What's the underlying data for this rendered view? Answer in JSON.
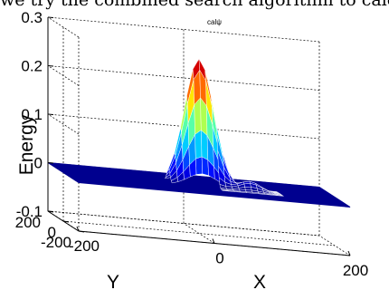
{
  "top_caption": "we try the combined search algorithm to calculate",
  "chart_data": {
    "type": "surface",
    "title": "calψ",
    "xlabel": "X",
    "ylabel": "Y",
    "zlabel": "Energy",
    "x_ticks": [
      "-200",
      "0",
      "200"
    ],
    "y_ticks": [
      "-200",
      "0",
      "200"
    ],
    "z_ticks": [
      "-0.1",
      "0",
      "0.1",
      "0.2",
      "0.3"
    ],
    "xlim": [
      -200,
      200
    ],
    "ylim": [
      -200,
      200
    ],
    "zlim": [
      -0.1,
      0.3
    ],
    "grid": true,
    "colormap": "jet",
    "base_color": "#00008f",
    "peaks": [
      {
        "x": 0,
        "y": 0,
        "z": 0.26
      },
      {
        "x": 70,
        "y": -40,
        "z": 0.02
      }
    ]
  }
}
